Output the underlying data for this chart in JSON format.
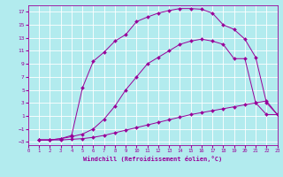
{
  "background_color": "#b2ebee",
  "grid_color": "#ffffff",
  "line_color": "#990099",
  "xlim": [
    0,
    23
  ],
  "ylim": [
    -3.5,
    18
  ],
  "xticks": [
    0,
    1,
    2,
    3,
    4,
    5,
    6,
    7,
    8,
    9,
    10,
    11,
    12,
    13,
    14,
    15,
    16,
    17,
    18,
    19,
    20,
    21,
    22,
    23
  ],
  "yticks": [
    -3,
    -1,
    1,
    3,
    5,
    7,
    9,
    11,
    13,
    15,
    17
  ],
  "xlabel": "Windchill (Refroidissement éolien,°C)",
  "curve1_x": [
    1,
    2,
    3,
    4,
    5,
    6,
    7,
    8,
    9,
    10,
    11,
    12,
    13,
    14,
    15,
    16,
    17,
    18,
    19,
    20,
    21,
    22,
    23
  ],
  "curve1_y": [
    -2.7,
    -2.7,
    -2.7,
    -2.6,
    -2.5,
    -2.3,
    -2.0,
    -1.6,
    -1.2,
    -0.8,
    -0.4,
    0.0,
    0.4,
    0.8,
    1.2,
    1.5,
    1.8,
    2.1,
    2.4,
    2.7,
    3.0,
    3.3,
    1.2
  ],
  "curve2_x": [
    1,
    2,
    3,
    4,
    5,
    6,
    7,
    8,
    9,
    10,
    11,
    12,
    13,
    14,
    15,
    16,
    17,
    18,
    19,
    20,
    21,
    22,
    23
  ],
  "curve2_y": [
    -2.7,
    -2.7,
    -2.5,
    -2.2,
    -1.8,
    -1.0,
    0.5,
    2.5,
    5.0,
    7.0,
    9.0,
    10.0,
    11.0,
    12.0,
    12.5,
    12.8,
    12.5,
    12.0,
    9.8,
    9.8,
    3.0,
    1.2,
    1.2
  ],
  "curve3_x": [
    1,
    2,
    3,
    4,
    5,
    6,
    7,
    8,
    9,
    10,
    11,
    12,
    13,
    14,
    15,
    16,
    17,
    18,
    19,
    20,
    21,
    22,
    23
  ],
  "curve3_y": [
    -2.7,
    -2.7,
    -2.5,
    -2.0,
    5.3,
    9.4,
    10.8,
    12.5,
    13.5,
    15.5,
    16.2,
    16.8,
    17.2,
    17.5,
    17.5,
    17.4,
    16.8,
    15.0,
    14.3,
    12.8,
    10.0,
    3.0,
    1.2
  ]
}
